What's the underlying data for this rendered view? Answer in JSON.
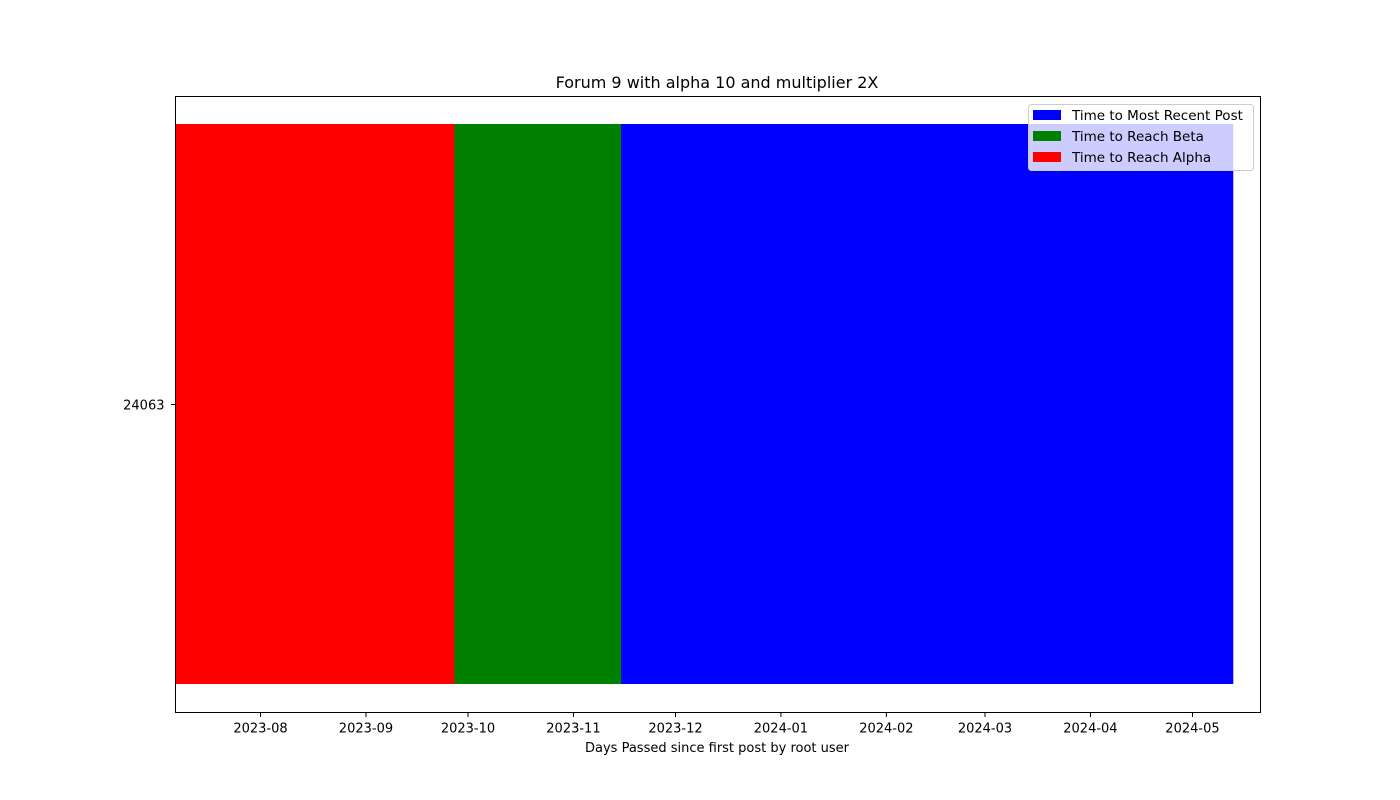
{
  "chart_data": {
    "type": "bar",
    "orientation": "horizontal",
    "stacking": "overlaid",
    "title": "Forum 9 with alpha 10 and multiplier 2X",
    "xlabel": "Days Passed since first post by root user",
    "ylabel": "",
    "x_axis_type": "date",
    "xlim": [
      "2023-07-07",
      "2024-05-21"
    ],
    "categories": [
      "24063"
    ],
    "series": [
      {
        "name": "Time to Most Recent Post",
        "color": "#0000ff",
        "start": [
          "2023-07-07"
        ],
        "end": [
          "2024-05-13"
        ]
      },
      {
        "name": "Time to Reach Beta",
        "color": "#008000",
        "start": [
          "2023-07-07"
        ],
        "end": [
          "2023-11-15"
        ]
      },
      {
        "name": "Time to Reach Alpha",
        "color": "#ff0000",
        "start": [
          "2023-07-07"
        ],
        "end": [
          "2023-09-27"
        ]
      }
    ],
    "x_ticks": [
      "2023-08",
      "2023-09",
      "2023-10",
      "2023-11",
      "2023-12",
      "2024-01",
      "2024-02",
      "2024-03",
      "2024-04",
      "2024-05"
    ],
    "legend": {
      "placement": "top-right",
      "order": [
        "Time to Most Recent Post",
        "Time to Reach Beta",
        "Time to Reach Alpha"
      ]
    },
    "grid": false
  }
}
